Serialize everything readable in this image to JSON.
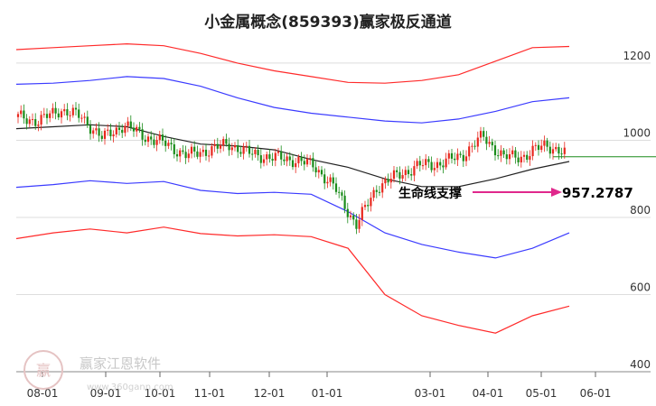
{
  "chart_data": {
    "type": "line",
    "title": "小金属概念(859393)赢家极反通道",
    "x_tick_labels": [
      "08-01",
      "09-01",
      "10-01",
      "11-01",
      "12-01",
      "01-01",
      "03-01",
      "04-01",
      "05-01",
      "06-01"
    ],
    "y_tick_labels": [
      "1200",
      "1000",
      "800",
      "600",
      "400"
    ],
    "ylim": [
      400,
      1270
    ],
    "annotation_label": "生命线支撑",
    "current_value_label": "957.2787",
    "current_value": 957.2787,
    "series": [
      {
        "name": "",
        "color": "#ff2a2a",
        "y": [
          1235,
          1240,
          1245,
          1250,
          1245,
          1225,
          1200,
          1180,
          1165,
          1150,
          1148,
          1155,
          1170,
          1205,
          1240,
          1243
        ]
      },
      {
        "name": "",
        "color": "#3b3bff",
        "y": [
          1145,
          1148,
          1155,
          1165,
          1160,
          1140,
          1110,
          1085,
          1070,
          1060,
          1050,
          1045,
          1055,
          1075,
          1100,
          1110
        ]
      },
      {
        "name": "",
        "color": "#222222",
        "y": [
          1030,
          1035,
          1040,
          1035,
          1010,
          990,
          985,
          975,
          950,
          930,
          900,
          880,
          880,
          900,
          925,
          945
        ]
      },
      {
        "name": "",
        "color": "#3b3bff",
        "y": [
          878,
          885,
          895,
          888,
          893,
          870,
          862,
          865,
          860,
          815,
          760,
          730,
          710,
          695,
          720,
          760
        ]
      },
      {
        "name": "",
        "color": "#ff2a2a",
        "y": [
          745,
          760,
          770,
          760,
          775,
          758,
          752,
          755,
          750,
          720,
          600,
          545,
          520,
          500,
          545,
          570
        ]
      }
    ],
    "price": {
      "color_up": "#e8281e",
      "color_down": "#1a8c1a",
      "y": [
        1060,
        1050,
        1080,
        1060,
        1005,
        1040,
        1010,
        990,
        960,
        975,
        990,
        965,
        955,
        950,
        935,
        875,
        780,
        880,
        910,
        935,
        940,
        960,
        1010,
        955,
        960,
        990,
        960
      ]
    }
  },
  "watermark": {
    "text": "赢家江恩软件",
    "subtext": "www.360gann.com",
    "logo": "赢"
  }
}
